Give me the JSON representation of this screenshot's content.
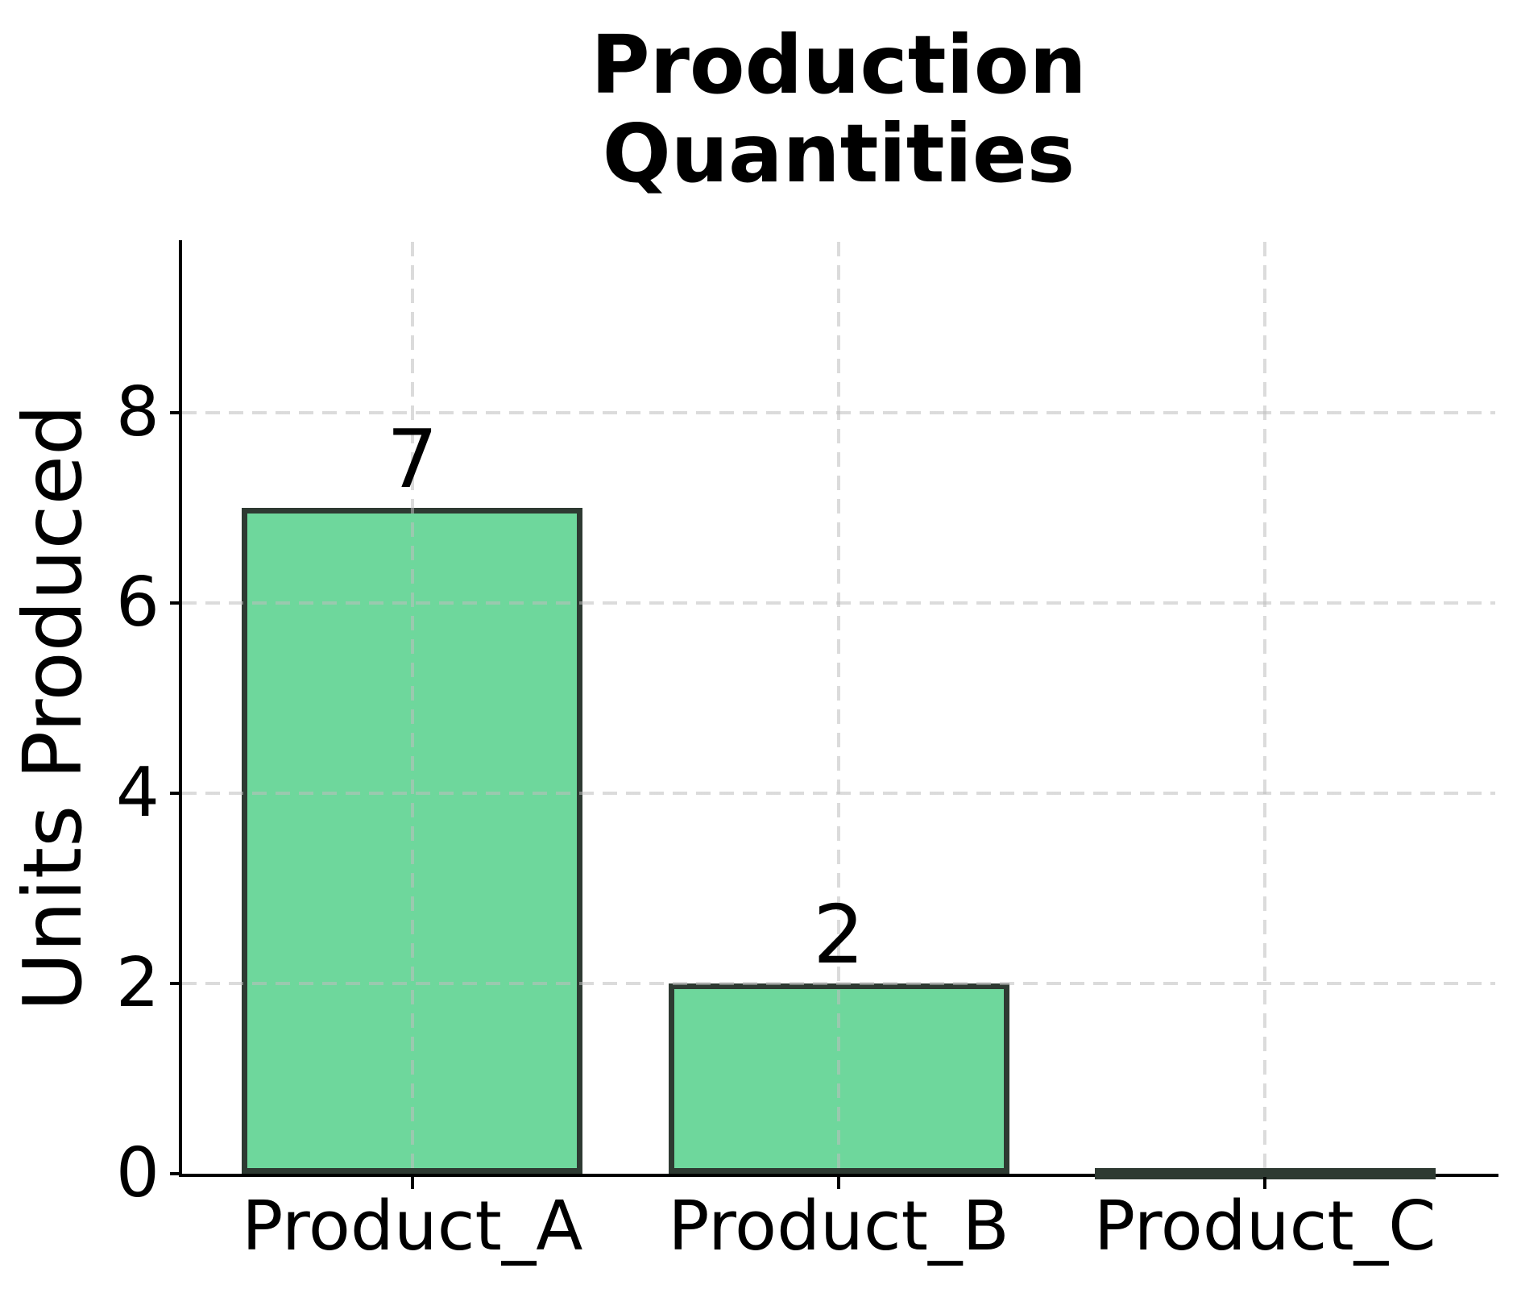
{
  "title_display": "Production\nQuantities",
  "chart_data": {
    "type": "bar",
    "title": "Production Quantities",
    "categories": [
      "Product_A",
      "Product_B",
      "Product_C"
    ],
    "values": [
      7,
      2,
      0
    ],
    "bar_value_labels": [
      "7",
      "2",
      ""
    ],
    "xlabel": "",
    "ylabel": "Units Produced",
    "yticks": [
      0,
      2,
      4,
      6,
      8
    ],
    "ylim": [
      0,
      9.8
    ],
    "xlim": [
      -0.54,
      2.54
    ],
    "bar_width_fraction": 0.8,
    "grid": true,
    "grid_style": "dashed",
    "legend_position": "none",
    "bar_color": "#6ed79c",
    "bar_edge_color": "#2e3a32",
    "grid_color": "rgba(190,190,190,0.55)",
    "axis_color": "#000000",
    "text_color": "#000000"
  }
}
